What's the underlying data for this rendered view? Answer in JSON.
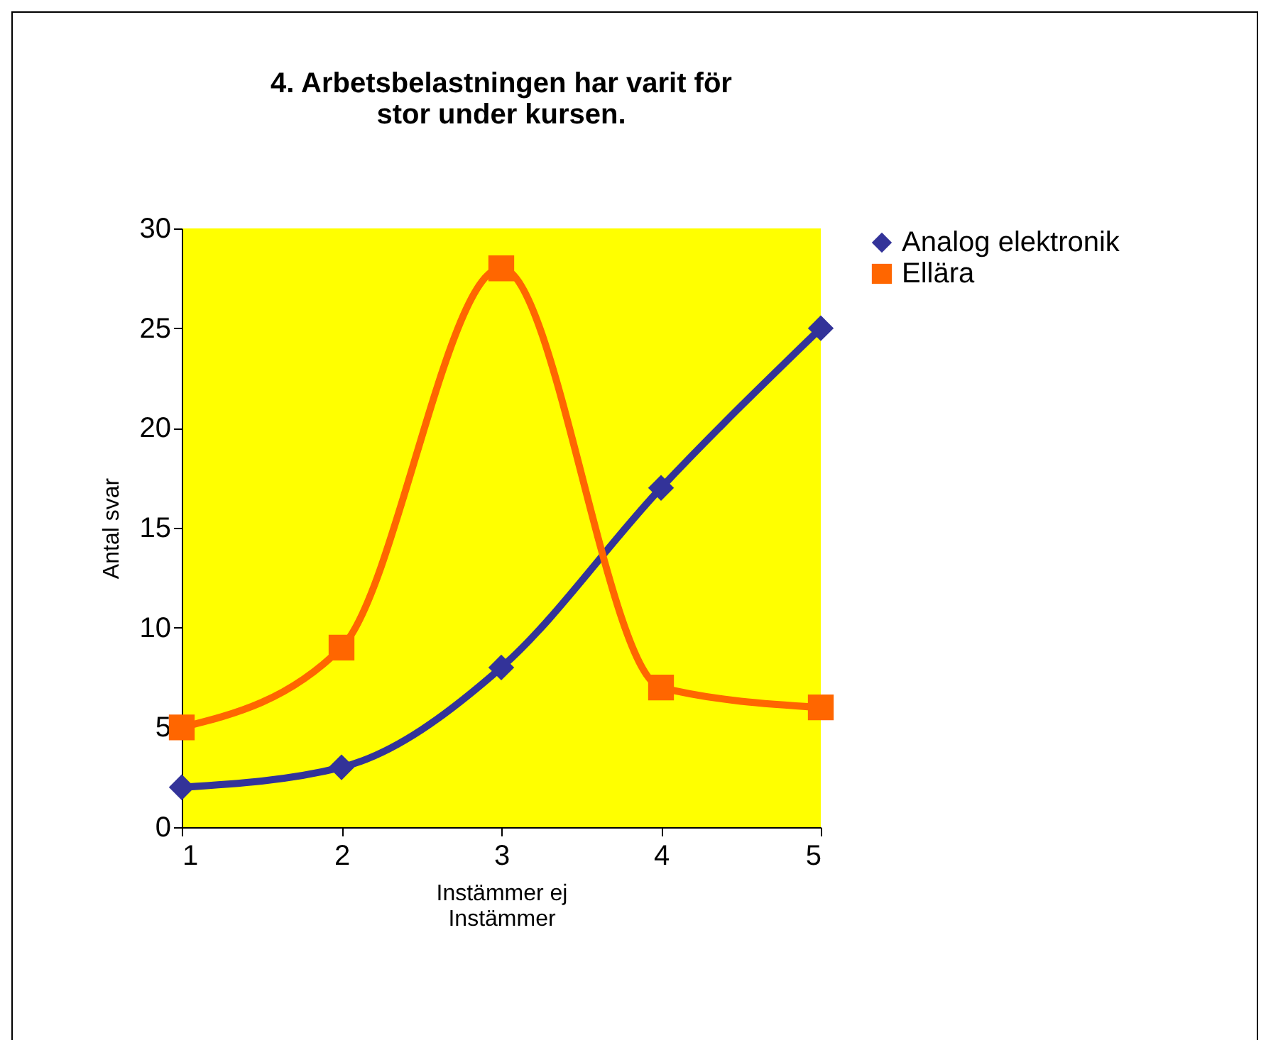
{
  "chart_data": {
    "type": "line",
    "title": "4. Arbetsbelastningen har varit för stor under kursen.",
    "xlabel": "Instämmer ej\nInstämmer",
    "ylabel": "Antal svar",
    "x": [
      1,
      2,
      3,
      4,
      5
    ],
    "xlim": [
      1,
      5
    ],
    "xticks": [
      1,
      2,
      3,
      4,
      5
    ],
    "ylim": [
      0,
      30
    ],
    "yticks": [
      0,
      5,
      10,
      15,
      20,
      25,
      30
    ],
    "grid": false,
    "legend": "right",
    "series": [
      {
        "name": "Analog elektronik",
        "color": "#333399",
        "marker": "diamond",
        "values": [
          2,
          3,
          8,
          17,
          25
        ]
      },
      {
        "name": "Ellära",
        "color": "#ff6600",
        "marker": "square",
        "values": [
          5,
          9,
          28,
          7,
          6
        ]
      }
    ]
  }
}
